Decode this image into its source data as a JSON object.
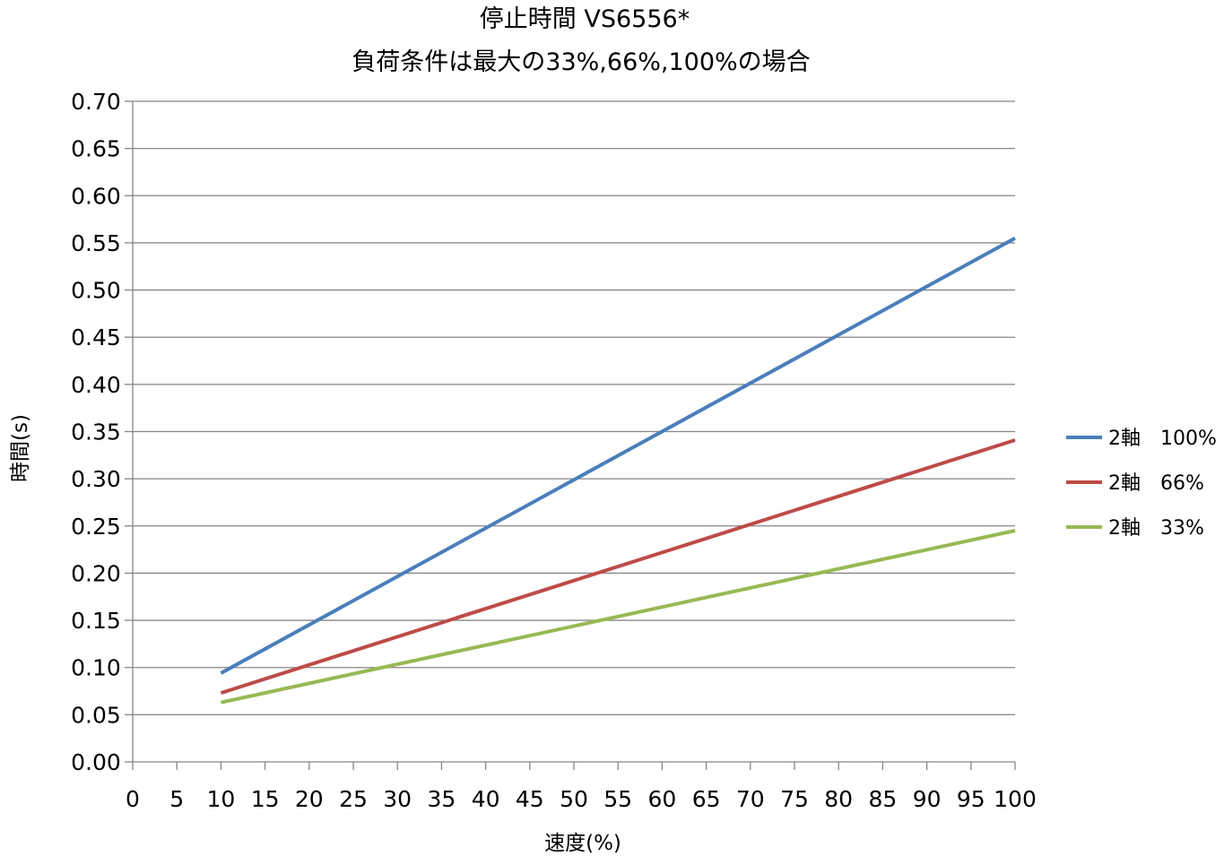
{
  "chart_data": {
    "type": "line",
    "title": "停止時間 VS6556*",
    "subtitle": "負荷条件は最大の33%,66%,100%の場合",
    "xlabel": "速度(%)",
    "ylabel": "時間(s)",
    "xlim": [
      0,
      100
    ],
    "ylim": [
      0,
      0.7
    ],
    "x_ticks": [
      "0",
      "5",
      "10",
      "15",
      "20",
      "25",
      "30",
      "35",
      "40",
      "45",
      "50",
      "55",
      "60",
      "65",
      "70",
      "75",
      "80",
      "85",
      "90",
      "95",
      "100"
    ],
    "y_ticks": [
      "0.00",
      "0.05",
      "0.10",
      "0.15",
      "0.20",
      "0.25",
      "0.30",
      "0.35",
      "0.40",
      "0.45",
      "0.50",
      "0.55",
      "0.60",
      "0.65",
      "0.70"
    ],
    "grid": "horizontal",
    "legend_position": "right",
    "series": [
      {
        "name": "2軸　100%",
        "color": "#4a7ebb",
        "x": [
          10,
          100
        ],
        "y": [
          0.094,
          0.555
        ]
      },
      {
        "name": "2軸　66%",
        "color": "#be4b48",
        "x": [
          10,
          100
        ],
        "y": [
          0.073,
          0.341
        ]
      },
      {
        "name": "2軸　33%",
        "color": "#98b954",
        "x": [
          10,
          100
        ],
        "y": [
          0.063,
          0.245
        ]
      }
    ]
  }
}
